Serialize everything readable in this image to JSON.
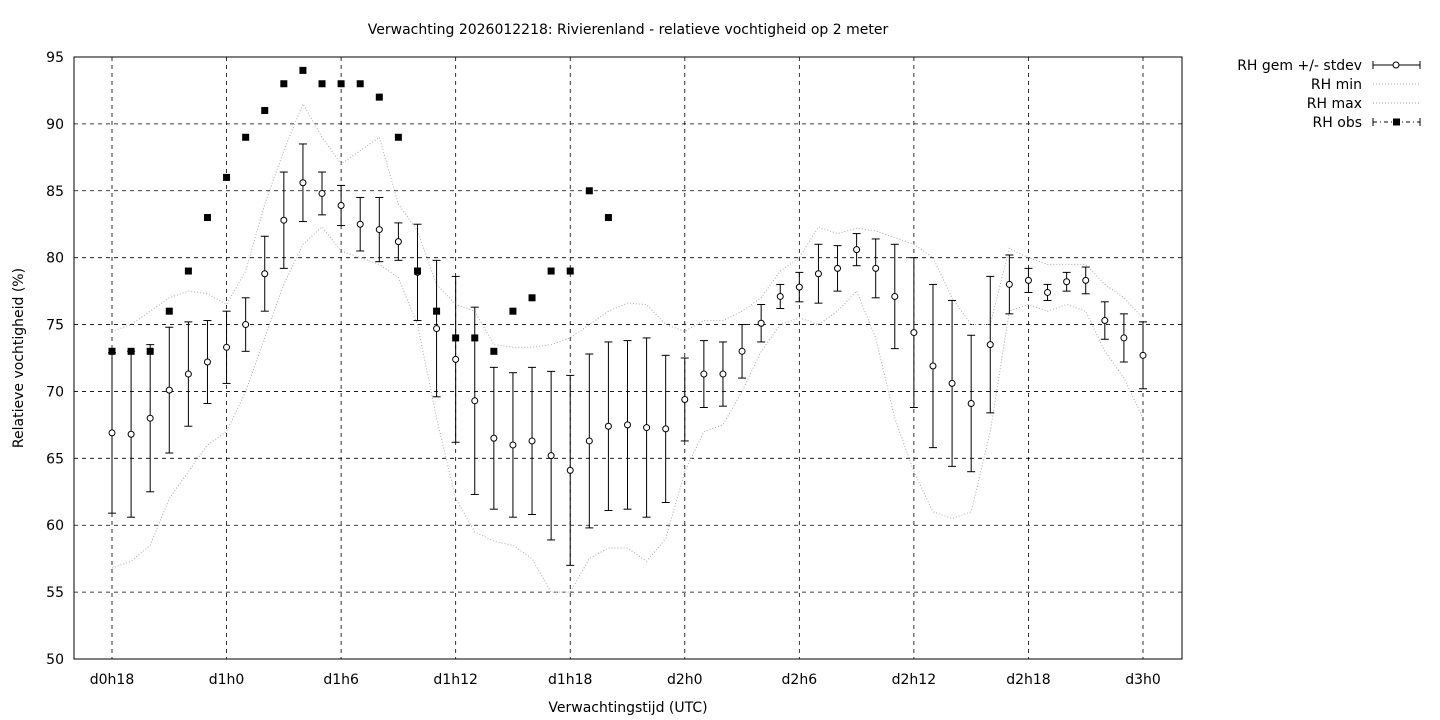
{
  "chart_data": {
    "type": "line",
    "title": "Verwachting 2026012218: Rivierenland - relatieve vochtigheid op 2 meter",
    "xlabel": "Verwachtingstijd (UTC)",
    "ylabel": "Relatieve vochtigheid (%)",
    "ylim": [
      50,
      95
    ],
    "xlim_hours": [
      16,
      75
    ],
    "yticks": [
      50,
      55,
      60,
      65,
      70,
      75,
      80,
      85,
      90,
      95
    ],
    "xticks": [
      {
        "h": 18,
        "label": "d0h18"
      },
      {
        "h": 24,
        "label": "d1h0"
      },
      {
        "h": 30,
        "label": "d1h6"
      },
      {
        "h": 36,
        "label": "d1h12"
      },
      {
        "h": 42,
        "label": "d1h18"
      },
      {
        "h": 48,
        "label": "d2h0"
      },
      {
        "h": 54,
        "label": "d2h6"
      },
      {
        "h": 60,
        "label": "d2h12"
      },
      {
        "h": 66,
        "label": "d2h18"
      },
      {
        "h": 72,
        "label": "d3h0"
      }
    ],
    "grid": true,
    "legend_position": "outside-top-right",
    "legend": [
      "RH gem +/- stdev",
      "RH min",
      "RH max",
      "RH obs"
    ],
    "hours_start": 18,
    "mean": [
      66.9,
      66.8,
      68.0,
      70.1,
      71.3,
      72.2,
      73.3,
      75.0,
      78.8,
      82.8,
      85.6,
      84.8,
      83.9,
      82.5,
      82.1,
      81.2,
      78.9,
      74.7,
      72.4,
      69.3,
      66.5,
      66.0,
      66.3,
      65.2,
      64.1,
      66.3,
      67.4,
      67.5,
      67.3,
      67.2,
      69.4,
      71.3,
      71.3,
      73.0,
      75.1,
      77.1,
      77.8,
      78.8,
      79.2,
      80.6,
      79.2,
      77.1,
      74.4,
      71.9,
      70.6,
      69.1,
      73.5,
      78.0,
      78.3,
      77.4,
      78.2,
      78.3,
      75.3,
      74.0,
      72.7
    ],
    "stdev": [
      6.0,
      6.2,
      5.5,
      4.7,
      3.9,
      3.1,
      2.7,
      2.0,
      2.8,
      3.6,
      2.9,
      1.6,
      1.5,
      2.0,
      2.4,
      1.4,
      3.6,
      5.1,
      6.2,
      7.0,
      5.3,
      5.4,
      5.5,
      6.3,
      7.1,
      6.5,
      6.3,
      6.3,
      6.7,
      5.5,
      3.1,
      2.5,
      2.4,
      2.0,
      1.4,
      0.9,
      1.1,
      2.2,
      1.7,
      1.2,
      2.2,
      3.9,
      5.6,
      6.1,
      6.2,
      5.1,
      5.1,
      2.2,
      0.9,
      0.6,
      0.7,
      1.0,
      1.4,
      1.8,
      2.5
    ],
    "min": [
      56.8,
      57.3,
      58.5,
      62,
      64,
      66,
      67,
      70,
      74,
      78,
      81,
      82.3,
      80.5,
      80,
      79.5,
      78.5,
      75,
      68,
      62,
      59.5,
      58.8,
      58.5,
      57.5,
      55,
      55,
      57.5,
      58.3,
      58.3,
      57.3,
      59,
      64,
      67,
      67.5,
      70,
      73,
      75,
      75.5,
      75,
      76,
      77.5,
      74,
      68,
      64,
      61,
      60.5,
      61,
      67,
      76,
      76.5,
      76,
      76.5,
      76,
      73,
      71,
      68
    ],
    "max": [
      74.5,
      75,
      76,
      77,
      77.5,
      77.3,
      76.5,
      79,
      84,
      88,
      91.5,
      89,
      87,
      88,
      89,
      84,
      82,
      78,
      76.5,
      76,
      73.5,
      73.3,
      73.3,
      73.5,
      74,
      75,
      76,
      76.6,
      76.5,
      75,
      74.5,
      75.3,
      75.3,
      76,
      77,
      79,
      80,
      82.3,
      81.8,
      82.2,
      82,
      81.5,
      81,
      80,
      77,
      75,
      75,
      80.7,
      80,
      79.5,
      79.5,
      79.5,
      78,
      77,
      75.5
    ],
    "obs": [
      73,
      73,
      73,
      76,
      79,
      83,
      86,
      89,
      91,
      93,
      94,
      93,
      93,
      93,
      92,
      89,
      79,
      76,
      74,
      74,
      73,
      76,
      77,
      79,
      79,
      85,
      83
    ]
  }
}
